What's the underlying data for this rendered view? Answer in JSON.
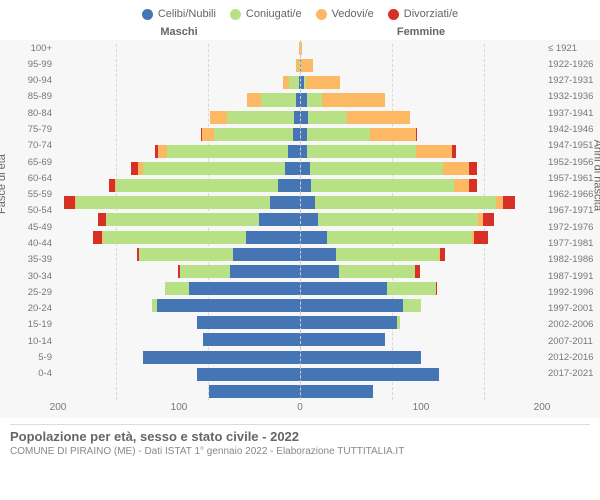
{
  "chart": {
    "type": "population_pyramid_stacked",
    "background_color": "#f7f7f7",
    "grid_color": "#d8d8d8",
    "center_line_color": "#cccccc",
    "label_fontsize": 10,
    "legend": [
      {
        "label": "Celibi/Nubili",
        "color": "#4575b4"
      },
      {
        "label": "Coniugati/e",
        "color": "#b8e186"
      },
      {
        "label": "Vedovi/e",
        "color": "#fdb863"
      },
      {
        "label": "Divorziati/e",
        "color": "#d73027"
      }
    ],
    "header_left": "Maschi",
    "header_right": "Femmine",
    "y_axis_left_label": "Fasce di età",
    "y_axis_right_label": "Anni di nascita",
    "x_max": 200,
    "x_ticks": [
      200,
      100,
      0,
      100,
      200
    ],
    "title": "Popolazione per età, sesso e stato civile - 2022",
    "subtitle": "COMUNE DI PIRAINO (ME) - Dati ISTAT 1° gennaio 2022 - Elaborazione TUTTITALIA.IT",
    "age_groups": [
      {
        "age": "100+",
        "birth": "≤ 1921",
        "m": {
          "cel": 0,
          "con": 0,
          "ved": 1,
          "div": 0
        },
        "f": {
          "cel": 0,
          "con": 0,
          "ved": 2,
          "div": 0
        }
      },
      {
        "age": "95-99",
        "birth": "1922-1926",
        "m": {
          "cel": 0,
          "con": 1,
          "ved": 2,
          "div": 0
        },
        "f": {
          "cel": 1,
          "con": 0,
          "ved": 10,
          "div": 0
        }
      },
      {
        "age": "90-94",
        "birth": "1927-1931",
        "m": {
          "cel": 1,
          "con": 8,
          "ved": 5,
          "div": 0
        },
        "f": {
          "cel": 3,
          "con": 2,
          "ved": 28,
          "div": 0
        }
      },
      {
        "age": "85-89",
        "birth": "1932-1936",
        "m": {
          "cel": 3,
          "con": 29,
          "ved": 12,
          "div": 0
        },
        "f": {
          "cel": 6,
          "con": 12,
          "ved": 52,
          "div": 0
        }
      },
      {
        "age": "80-84",
        "birth": "1937-1941",
        "m": {
          "cel": 5,
          "con": 55,
          "ved": 14,
          "div": 0
        },
        "f": {
          "cel": 7,
          "con": 32,
          "ved": 52,
          "div": 0
        }
      },
      {
        "age": "75-79",
        "birth": "1942-1946",
        "m": {
          "cel": 6,
          "con": 65,
          "ved": 10,
          "div": 1
        },
        "f": {
          "cel": 6,
          "con": 52,
          "ved": 38,
          "div": 1
        }
      },
      {
        "age": "70-74",
        "birth": "1947-1951",
        "m": {
          "cel": 10,
          "con": 100,
          "ved": 7,
          "div": 3
        },
        "f": {
          "cel": 6,
          "con": 90,
          "ved": 30,
          "div": 3
        }
      },
      {
        "age": "65-69",
        "birth": "1952-1956",
        "m": {
          "cel": 12,
          "con": 118,
          "ved": 4,
          "div": 6
        },
        "f": {
          "cel": 8,
          "con": 110,
          "ved": 22,
          "div": 6
        }
      },
      {
        "age": "60-64",
        "birth": "1957-1961",
        "m": {
          "cel": 18,
          "con": 134,
          "ved": 1,
          "div": 5
        },
        "f": {
          "cel": 9,
          "con": 118,
          "ved": 13,
          "div": 6
        }
      },
      {
        "age": "55-59",
        "birth": "1962-1966",
        "m": {
          "cel": 25,
          "con": 160,
          "ved": 1,
          "div": 9
        },
        "f": {
          "cel": 12,
          "con": 150,
          "ved": 6,
          "div": 10
        }
      },
      {
        "age": "50-54",
        "birth": "1967-1971",
        "m": {
          "cel": 34,
          "con": 126,
          "ved": 0,
          "div": 7
        },
        "f": {
          "cel": 15,
          "con": 132,
          "ved": 4,
          "div": 9
        }
      },
      {
        "age": "45-49",
        "birth": "1972-1976",
        "m": {
          "cel": 45,
          "con": 118,
          "ved": 1,
          "div": 7
        },
        "f": {
          "cel": 22,
          "con": 120,
          "ved": 2,
          "div": 11
        }
      },
      {
        "age": "40-44",
        "birth": "1977-1981",
        "m": {
          "cel": 55,
          "con": 78,
          "ved": 0,
          "div": 2
        },
        "f": {
          "cel": 30,
          "con": 85,
          "ved": 1,
          "div": 4
        }
      },
      {
        "age": "35-39",
        "birth": "1982-1986",
        "m": {
          "cel": 58,
          "con": 41,
          "ved": 0,
          "div": 2
        },
        "f": {
          "cel": 32,
          "con": 63,
          "ved": 0,
          "div": 4
        }
      },
      {
        "age": "30-34",
        "birth": "1987-1991",
        "m": {
          "cel": 92,
          "con": 20,
          "ved": 0,
          "div": 0
        },
        "f": {
          "cel": 72,
          "con": 40,
          "ved": 0,
          "div": 1
        }
      },
      {
        "age": "25-29",
        "birth": "1992-1996",
        "m": {
          "cel": 118,
          "con": 4,
          "ved": 0,
          "div": 0
        },
        "f": {
          "cel": 85,
          "con": 15,
          "ved": 0,
          "div": 0
        }
      },
      {
        "age": "20-24",
        "birth": "1997-2001",
        "m": {
          "cel": 85,
          "con": 0,
          "ved": 0,
          "div": 0
        },
        "f": {
          "cel": 80,
          "con": 3,
          "ved": 0,
          "div": 0
        }
      },
      {
        "age": "15-19",
        "birth": "2002-2006",
        "m": {
          "cel": 80,
          "con": 0,
          "ved": 0,
          "div": 0
        },
        "f": {
          "cel": 70,
          "con": 0,
          "ved": 0,
          "div": 0
        }
      },
      {
        "age": "10-14",
        "birth": "2007-2011",
        "m": {
          "cel": 130,
          "con": 0,
          "ved": 0,
          "div": 0
        },
        "f": {
          "cel": 100,
          "con": 0,
          "ved": 0,
          "div": 0
        }
      },
      {
        "age": "5-9",
        "birth": "2012-2016",
        "m": {
          "cel": 85,
          "con": 0,
          "ved": 0,
          "div": 0
        },
        "f": {
          "cel": 115,
          "con": 0,
          "ved": 0,
          "div": 0
        }
      },
      {
        "age": "0-4",
        "birth": "2017-2021",
        "m": {
          "cel": 75,
          "con": 0,
          "ved": 0,
          "div": 0
        },
        "f": {
          "cel": 60,
          "con": 0,
          "ved": 0,
          "div": 0
        }
      }
    ]
  }
}
